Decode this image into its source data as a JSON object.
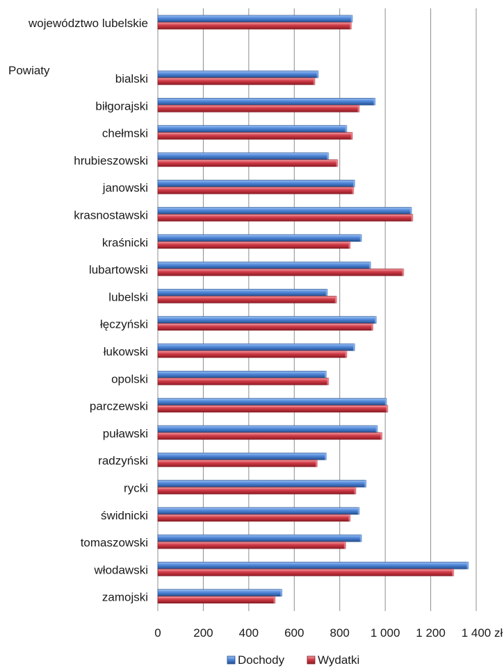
{
  "chart_data": {
    "type": "bar",
    "orientation": "horizontal",
    "categories": [
      "województwo lubelskie",
      "bialski",
      "biłgorajski",
      "chełmski",
      "hrubieszowski",
      "janowski",
      "krasnostawski",
      "kraśnicki",
      "lubartowski",
      "lubelski",
      "łęczyński",
      "łukowski",
      "opolski",
      "parczewski",
      "puławski",
      "radzyński",
      "rycki",
      "świdnicki",
      "tomaszowski",
      "włodawski",
      "zamojski"
    ],
    "group_label": "Powiaty",
    "series": [
      {
        "name": "Dochody",
        "color": "#4a7fd0",
        "values": [
          855,
          705,
          955,
          830,
          750,
          865,
          1115,
          895,
          935,
          745,
          960,
          865,
          740,
          1005,
          965,
          740,
          915,
          885,
          895,
          1365,
          545
        ]
      },
      {
        "name": "Wydatki",
        "color": "#cc3440",
        "values": [
          850,
          690,
          885,
          855,
          790,
          860,
          1120,
          845,
          1080,
          785,
          945,
          830,
          750,
          1010,
          985,
          700,
          870,
          845,
          825,
          1300,
          515
        ]
      }
    ],
    "x_ticks": [
      "0",
      "200",
      "400",
      "600",
      "800",
      "1 000",
      "1 200",
      "1 400"
    ],
    "x_unit": "zł",
    "xlim": [
      0,
      1400
    ],
    "grid": true,
    "legend_position": "bottom"
  }
}
